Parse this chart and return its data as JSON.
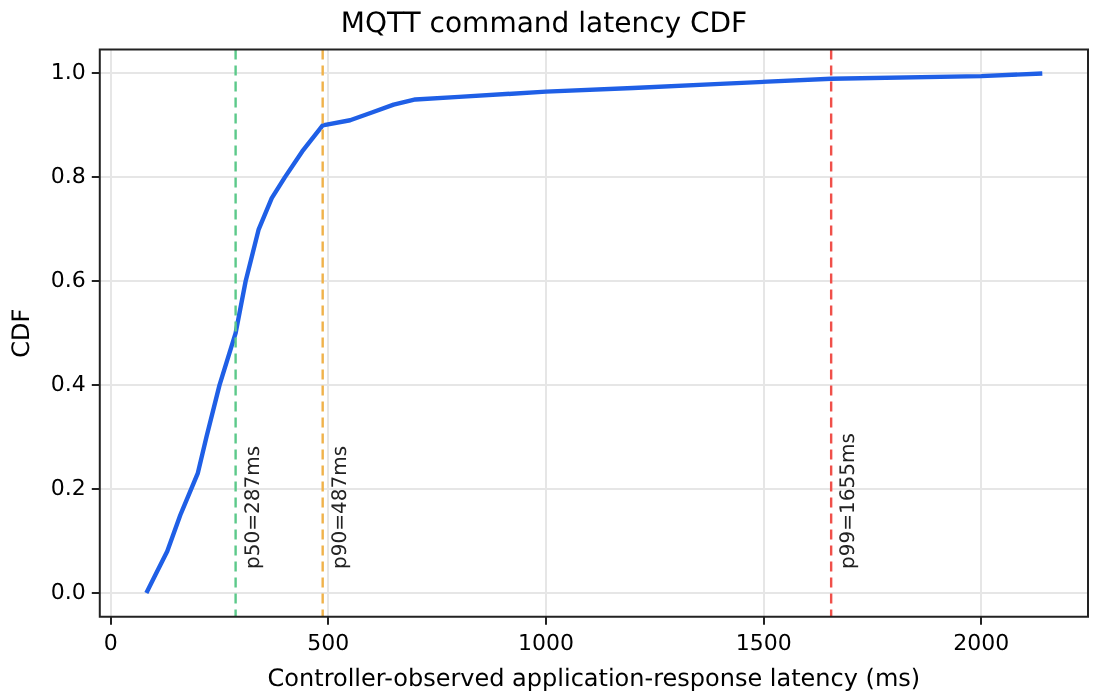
{
  "chart_data": {
    "type": "line",
    "title": "MQTT command latency CDF",
    "xlabel": "Controller-observed application-response latency (ms)",
    "ylabel": "CDF",
    "x": [
      82,
      100,
      130,
      160,
      200,
      220,
      250,
      287,
      310,
      340,
      370,
      400,
      440,
      487,
      550,
      600,
      650,
      700,
      800,
      1000,
      1200,
      1400,
      1655,
      2000,
      2140
    ],
    "series": [
      {
        "color": "#1f5fe6",
        "values": [
          0,
          0.03,
          0.08,
          0.15,
          0.23,
          0.3,
          0.4,
          0.5,
          0.6,
          0.7,
          0.76,
          0.8,
          0.85,
          0.9,
          0.91,
          0.925,
          0.94,
          0.95,
          0.955,
          0.965,
          0.972,
          0.98,
          0.99,
          0.995,
          1.0
        ]
      }
    ],
    "xlim": [
      -25,
      2245
    ],
    "xticks": [
      0,
      500,
      1000,
      1500,
      2000
    ],
    "ylim": [
      -0.046,
      1.046
    ],
    "yticks": [
      {
        "value": 0,
        "label": "0.0"
      },
      0.2,
      0.4,
      0.6,
      0.8,
      {
        "value": 1,
        "label": "1.0"
      }
    ],
    "grid": true,
    "marker": "none",
    "line_style": "solid",
    "ref_lines": [
      {
        "axis": "x",
        "value": 287,
        "label": "p50=287ms",
        "color": "#5cc98a",
        "line_style": "dashed"
      },
      {
        "axis": "x",
        "value": 487,
        "label": "p90=487ms",
        "color": "#f0b24a",
        "line_style": "dashed"
      },
      {
        "axis": "x",
        "value": 1655,
        "label": "p99=1655ms",
        "color": "#f0504a",
        "line_style": "dashed"
      }
    ]
  }
}
